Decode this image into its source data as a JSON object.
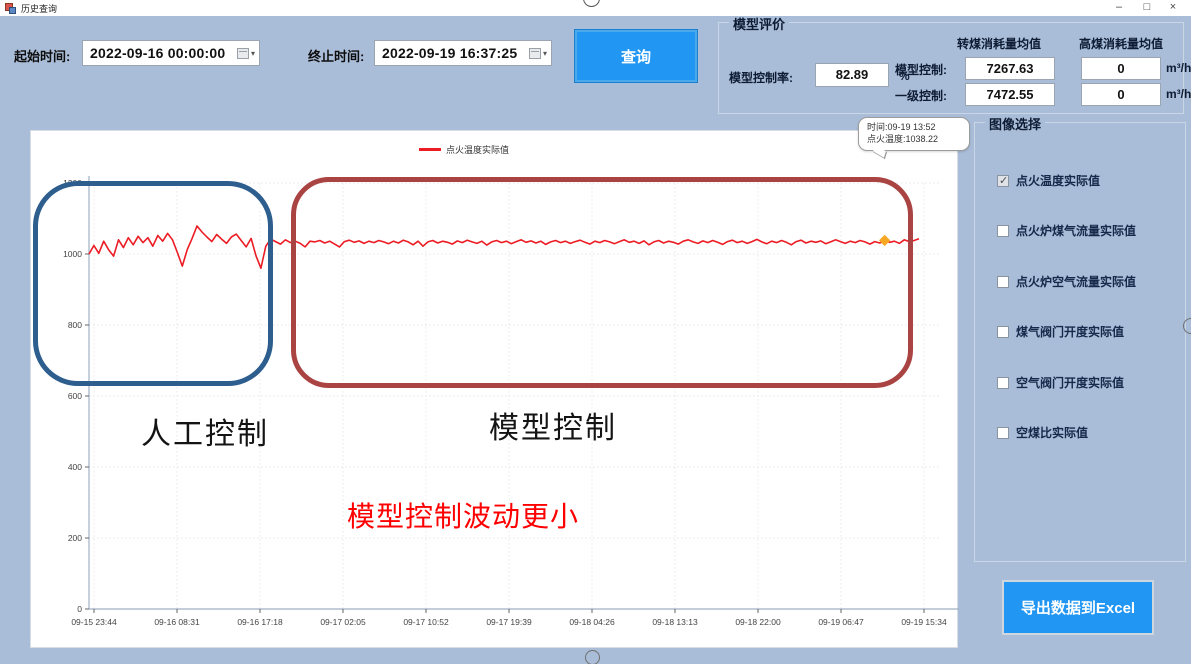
{
  "window": {
    "title": "历史查询",
    "minimize": "–",
    "maximize": "□",
    "close": "×"
  },
  "toolbar": {
    "start_time_label": "起始时间:",
    "start_time_value": "2022-09-16 00:00:00",
    "end_time_label": "终止时间:",
    "end_time_value": "2022-09-19 16:37:25",
    "query_button": "查询"
  },
  "model_evaluation": {
    "title": "模型评价",
    "control_rate_label": "模型控制率:",
    "control_rate_value": "82.89",
    "control_rate_unit": "%",
    "col_header_1": "转煤消耗量均值",
    "col_header_2": "高煤消耗量均值",
    "row1_label": "模型控制:",
    "row1_value1": "7267.63",
    "row1_value2": "0",
    "row1_unit": "m³/h",
    "row2_label": "一级控制:",
    "row2_value1": "7472.55",
    "row2_value2": "0",
    "row2_unit": "m³/h"
  },
  "tooltip": {
    "line1": "时间:09-19 13:52",
    "line2": "点火温度:1038.22"
  },
  "image_select": {
    "title": "图像选择",
    "options": [
      {
        "label": "点火温度实际值",
        "checked": true
      },
      {
        "label": "点火炉煤气流量实际值",
        "checked": false
      },
      {
        "label": "点火炉空气流量实际值",
        "checked": false
      },
      {
        "label": "煤气阀门开度实际值",
        "checked": false
      },
      {
        "label": "空气阀门开度实际值",
        "checked": false
      },
      {
        "label": "空煤比实际值",
        "checked": false
      }
    ]
  },
  "export_button": "导出数据到Excel",
  "annotations": {
    "manual_label": "人工控制",
    "model_label": "模型控制",
    "note": "模型控制波动更小",
    "note_color": "#ff0000",
    "manual_box_color": "#2d5e8e",
    "model_box_color": "#a94442"
  },
  "chart_data": {
    "type": "line",
    "legend": [
      "点火温度实际值"
    ],
    "line_color": "#ec1c24",
    "grid": true,
    "ylim": [
      0,
      1200
    ],
    "y_ticks": [
      0,
      200,
      400,
      600,
      800,
      1000,
      1200
    ],
    "x_ticks": [
      "09-15 23:44",
      "09-16 08:31",
      "09-16 17:18",
      "09-17 02:05",
      "09-17 10:52",
      "09-17 19:39",
      "09-18 04:26",
      "09-18 13:13",
      "09-18 22:00",
      "09-19 06:47",
      "09-19 15:34"
    ],
    "highlight_point": {
      "time": "09-19 13:52",
      "value": 1038.22,
      "index": 162,
      "color": "#f7a823"
    },
    "series": [
      {
        "name": "点火温度实际值",
        "values": [
          1000,
          1024,
          1002,
          1036,
          1012,
          994,
          1040,
          1018,
          1046,
          1026,
          1050,
          1032,
          1046,
          1022,
          1052,
          1036,
          1058,
          1040,
          1004,
          966,
          1012,
          1044,
          1079,
          1062,
          1048,
          1035,
          1055,
          1042,
          1030,
          1048,
          1056,
          1038,
          1020,
          1044,
          995,
          960,
          1022,
          1042,
          1035,
          1028,
          1040,
          1032,
          1036,
          1030,
          1020,
          1036,
          1034,
          1038,
          1031,
          1036,
          1028,
          1020,
          1035,
          1039,
          1033,
          1037,
          1030,
          1036,
          1032,
          1038,
          1034,
          1029,
          1036,
          1031,
          1039,
          1034,
          1026,
          1036,
          1022,
          1034,
          1038,
          1031,
          1036,
          1033,
          1028,
          1037,
          1032,
          1039,
          1034,
          1030,
          1036,
          1025,
          1034,
          1038,
          1032,
          1036,
          1029,
          1035,
          1040,
          1033,
          1037,
          1031,
          1036,
          1027,
          1034,
          1038,
          1032,
          1036,
          1030,
          1035,
          1039,
          1033,
          1028,
          1036,
          1032,
          1038,
          1034,
          1029,
          1035,
          1040,
          1033,
          1036,
          1030,
          1037,
          1026,
          1034,
          1038,
          1031,
          1036,
          1033,
          1028,
          1036,
          1040,
          1034,
          1030,
          1037,
          1032,
          1038,
          1033,
          1027,
          1035,
          1039,
          1032,
          1036,
          1030,
          1035,
          1041,
          1034,
          1029,
          1036,
          1032,
          1038,
          1033,
          1026,
          1035,
          1039,
          1031,
          1036,
          1033,
          1037,
          1029,
          1034,
          1040,
          1035,
          1030,
          1036,
          1032,
          1038,
          1034,
          1028,
          1035,
          1031,
          1038.22,
          1033,
          1036,
          1030,
          1040,
          1035,
          1038,
          1043
        ]
      }
    ]
  }
}
